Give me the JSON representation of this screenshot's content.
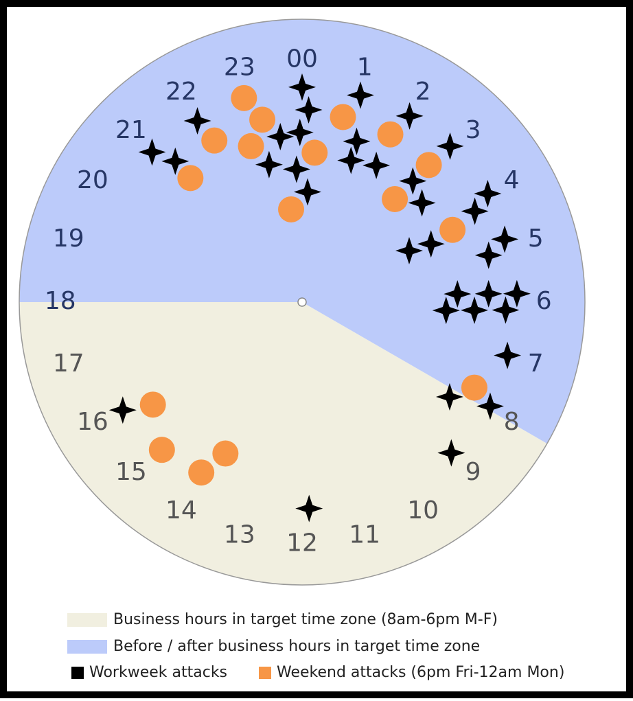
{
  "chart_data": {
    "type": "polar-scatter",
    "categories": [
      "00",
      "1",
      "2",
      "3",
      "4",
      "5",
      "6",
      "7",
      "8",
      "9",
      "10",
      "11",
      "12",
      "13",
      "14",
      "15",
      "16",
      "17",
      "18",
      "19",
      "20",
      "21",
      "22",
      "23"
    ],
    "regions": [
      {
        "name": "Business hours in target time zone (8am-6pm M-F)",
        "color": "#f1efe0",
        "label_color": "#555555",
        "from": 8,
        "to": 18
      },
      {
        "name": "Before / after business hours in target time zone",
        "color": "#bccbfa",
        "label_color": "#263665",
        "from": 18,
        "to": 8
      }
    ],
    "series": [
      {
        "name": "Workweek attacks",
        "color": "#000000",
        "x": [
          0,
          1.05,
          0.13,
          2.0,
          22.0,
          23.95,
          23.5,
          1.25,
          2.9,
          21.0,
          21.2,
          23.1,
          1.27,
          1.9,
          23.84,
          2.83,
          0.19,
          3.98,
          3.36,
          4.15,
          4.85,
          4.29,
          4.38,
          5.06,
          5.8,
          5.83,
          5.85,
          6.22,
          6.18,
          6.15,
          6.97,
          8.18,
          7.93,
          15.93,
          9.02,
          11.87
        ],
        "values": [
          0.76,
          0.76,
          0.68,
          0.76,
          0.74,
          0.6,
          0.59,
          0.6,
          0.76,
          0.75,
          0.67,
          0.5,
          0.53,
          0.55,
          0.47,
          0.58,
          0.39,
          0.76,
          0.55,
          0.69,
          0.75,
          0.42,
          0.5,
          0.68,
          0.55,
          0.66,
          0.76,
          0.51,
          0.61,
          0.72,
          0.75,
          0.62,
          0.76,
          0.74,
          0.75,
          0.73
        ]
      },
      {
        "name": "Weekend attacks (6pm Fri-12am Mon)",
        "color": "#f79646",
        "x": [
          22.94,
          23.18,
          0.83,
          22.1,
          22.79,
          1.85,
          0.32,
          2.85,
          21.2,
          2.8,
          23.55,
          4.29,
          7.76,
          15.7,
          14.9,
          13.79,
          14.04
        ],
        "values": [
          0.75,
          0.66,
          0.67,
          0.65,
          0.58,
          0.67,
          0.53,
          0.66,
          0.59,
          0.49,
          0.33,
          0.59,
          0.68,
          0.64,
          0.72,
          0.6,
          0.7
        ]
      }
    ]
  }
}
